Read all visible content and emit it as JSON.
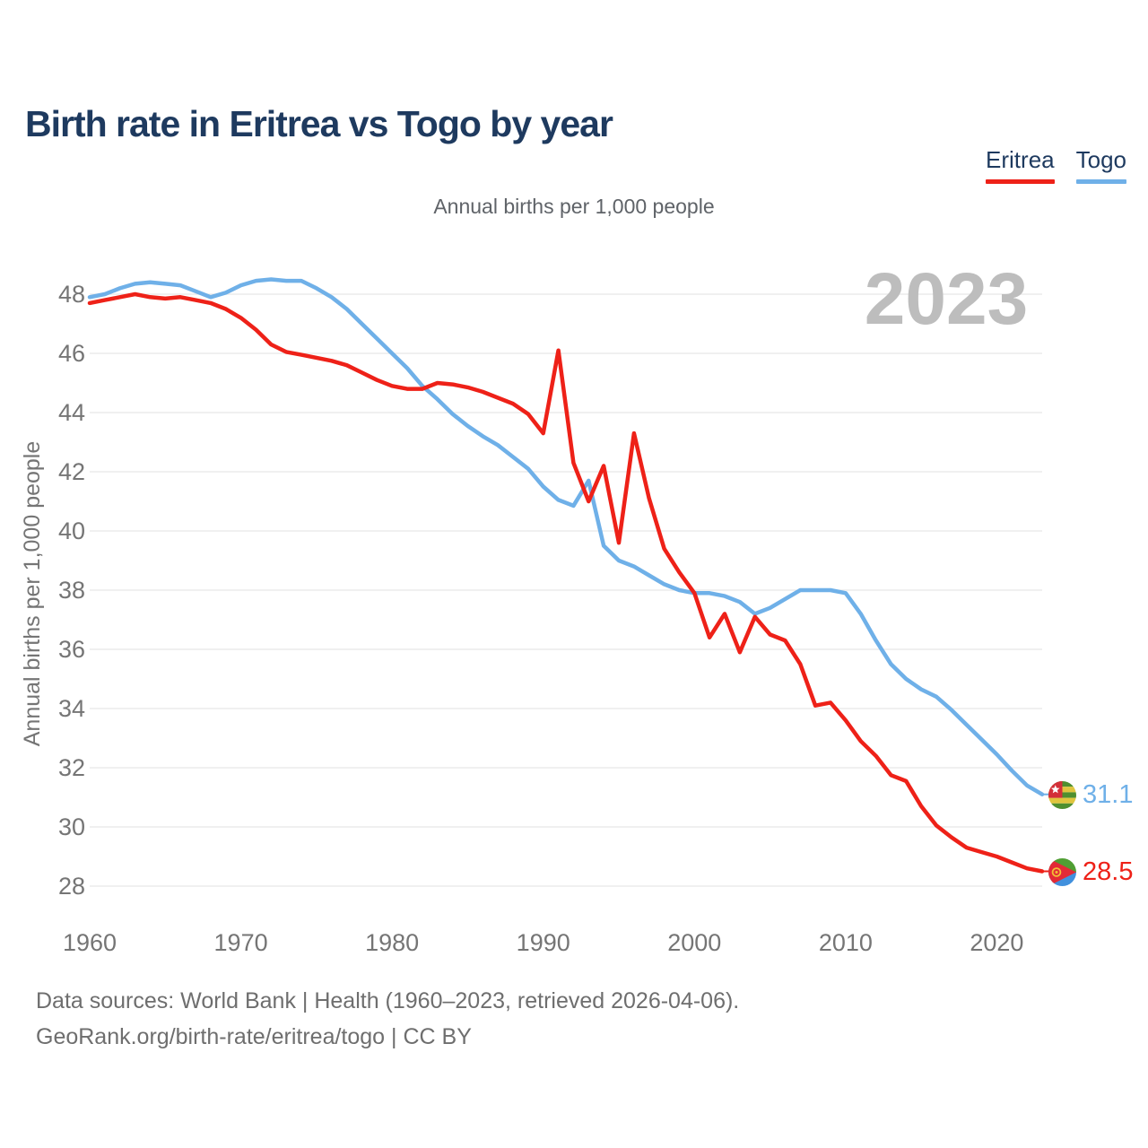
{
  "header": {
    "title": "Birth rate in Eritrea vs Togo by year"
  },
  "legend": {
    "items": [
      {
        "label": "Eritrea",
        "color": "#ee2118"
      },
      {
        "label": "Togo",
        "color": "#6fb0e8"
      }
    ]
  },
  "chart_data": {
    "type": "line",
    "title": "Birth rate in Eritrea vs Togo by year",
    "subtitle": "Annual births per 1,000 people",
    "ylabel": "Annual births per 1,000 people",
    "xlabel": "",
    "watermark": "2023",
    "grid": true,
    "legend_position": "top-right",
    "ylim": [
      28,
      48
    ],
    "yticks": [
      28,
      30,
      32,
      34,
      36,
      38,
      40,
      42,
      44,
      46,
      48
    ],
    "xticks": [
      1960,
      1970,
      1980,
      1990,
      2000,
      2010,
      2020
    ],
    "x": [
      1960,
      1961,
      1962,
      1963,
      1964,
      1965,
      1966,
      1967,
      1968,
      1969,
      1970,
      1971,
      1972,
      1973,
      1974,
      1975,
      1976,
      1977,
      1978,
      1979,
      1980,
      1981,
      1982,
      1983,
      1984,
      1985,
      1986,
      1987,
      1988,
      1989,
      1990,
      1991,
      1992,
      1993,
      1994,
      1995,
      1996,
      1997,
      1998,
      1999,
      2000,
      2001,
      2002,
      2003,
      2004,
      2005,
      2006,
      2007,
      2008,
      2009,
      2010,
      2011,
      2012,
      2013,
      2014,
      2015,
      2016,
      2017,
      2018,
      2019,
      2020,
      2021,
      2022,
      2023
    ],
    "series": [
      {
        "name": "Eritrea",
        "color": "#ee2118",
        "flag": "eritrea",
        "end_label": "28.5",
        "values": [
          47.7,
          47.8,
          47.9,
          48.0,
          47.9,
          47.85,
          47.9,
          47.8,
          47.7,
          47.5,
          47.2,
          46.8,
          46.3,
          46.05,
          45.95,
          45.85,
          45.75,
          45.6,
          45.35,
          45.1,
          44.9,
          44.8,
          44.8,
          45.0,
          44.95,
          44.85,
          44.7,
          44.5,
          44.3,
          43.95,
          43.3,
          46.1,
          42.3,
          41.0,
          42.2,
          39.6,
          43.3,
          41.1,
          39.4,
          38.6,
          37.9,
          36.4,
          37.2,
          35.9,
          37.1,
          36.5,
          36.3,
          35.5,
          34.1,
          34.2,
          33.6,
          32.9,
          32.4,
          31.75,
          31.55,
          30.7,
          30.05,
          29.65,
          29.3,
          29.15,
          29.0,
          28.8,
          28.6,
          28.5
        ]
      },
      {
        "name": "Togo",
        "color": "#6fb0e8",
        "flag": "togo",
        "end_label": "31.1",
        "values": [
          47.9,
          48.0,
          48.2,
          48.35,
          48.4,
          48.35,
          48.3,
          48.1,
          47.9,
          48.05,
          48.3,
          48.45,
          48.5,
          48.45,
          48.45,
          48.2,
          47.9,
          47.5,
          47.0,
          46.5,
          46.0,
          45.5,
          44.9,
          44.45,
          43.95,
          43.55,
          43.2,
          42.9,
          42.5,
          42.1,
          41.5,
          41.05,
          40.85,
          41.7,
          39.5,
          39.0,
          38.8,
          38.5,
          38.2,
          38.0,
          37.9,
          37.9,
          37.8,
          37.6,
          37.2,
          37.4,
          37.7,
          38.0,
          38.0,
          38.0,
          37.9,
          37.2,
          36.3,
          35.5,
          35.0,
          34.65,
          34.4,
          33.95,
          33.45,
          32.95,
          32.45,
          31.9,
          31.4,
          31.1
        ]
      }
    ]
  },
  "style": {
    "grid_color": "#e8e8e8",
    "tick_color": "#757575",
    "watermark_color": "#bdbdbd"
  },
  "footer": {
    "line1": "Data sources: World Bank | Health (1960–2023, retrieved 2026-04-06).",
    "line2": "GeoRank.org/birth-rate/eritrea/togo | CC BY"
  }
}
